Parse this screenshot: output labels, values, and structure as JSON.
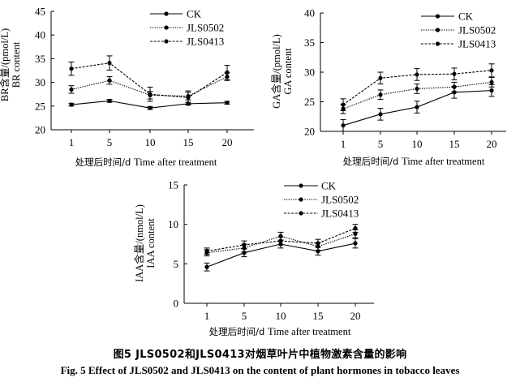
{
  "chart_data": [
    {
      "type": "line",
      "x": [
        1,
        5,
        10,
        15,
        20
      ],
      "ylim": [
        20,
        45
      ],
      "yticks": [
        20,
        25,
        30,
        35,
        40,
        45
      ],
      "ylabel": "BR含量/(pmol/L) BR content",
      "ylabel_zh": "BR含量/(pmol/L)",
      "ylabel_en": "BR content",
      "xlabel": "处理后时间/d Time after treatment",
      "legend": "top",
      "series": [
        {
          "name": "CK",
          "style": "solid",
          "values": [
            25.3,
            26.1,
            24.6,
            25.5,
            25.7
          ],
          "errors": [
            0.3,
            0.3,
            0.3,
            0.3,
            0.3
          ]
        },
        {
          "name": "JLS0502",
          "style": "dotted",
          "values": [
            28.5,
            30.4,
            27.3,
            27.1,
            31.2
          ],
          "errors": [
            0.8,
            0.8,
            0.8,
            0.8,
            0.8
          ]
        },
        {
          "name": "JLS0413",
          "style": "dashed",
          "values": [
            32.9,
            34.1,
            27.5,
            26.8,
            32.1
          ],
          "errors": [
            1.4,
            1.5,
            1.5,
            1.4,
            1.5
          ]
        }
      ]
    },
    {
      "type": "line",
      "x": [
        1,
        5,
        10,
        15,
        20
      ],
      "ylim": [
        20,
        40
      ],
      "yticks": [
        20,
        25,
        30,
        35,
        40
      ],
      "ylabel": "GA含量/(pmol/L) GA content",
      "ylabel_zh": "GA含量/(pmol/L)",
      "ylabel_en": "GA content",
      "xlabel": "处理后时间/d Time after treatment",
      "legend": "top-right",
      "series": [
        {
          "name": "CK",
          "style": "solid",
          "values": [
            21.0,
            22.9,
            24.1,
            26.6,
            26.9
          ],
          "errors": [
            1.0,
            1.0,
            1.0,
            1.0,
            1.0
          ]
        },
        {
          "name": "JLS0502",
          "style": "dotted",
          "values": [
            23.8,
            26.2,
            27.2,
            27.5,
            28.3
          ],
          "errors": [
            0.8,
            0.8,
            0.8,
            0.8,
            0.8
          ]
        },
        {
          "name": "JLS0413",
          "style": "dashed",
          "values": [
            24.5,
            29.0,
            29.6,
            29.7,
            30.3
          ],
          "errors": [
            1.0,
            1.0,
            1.0,
            1.0,
            1.1
          ]
        }
      ]
    },
    {
      "type": "line",
      "x": [
        1,
        5,
        10,
        15,
        20
      ],
      "ylim": [
        0,
        15
      ],
      "yticks": [
        0,
        5,
        10,
        15
      ],
      "ylabel": "IAA含量/(nmol/L) IAA content",
      "ylabel_zh": "IAA含量/(nmol/L)",
      "ylabel_en": "IAA content",
      "xlabel": "处理后时间/d Time after treatment",
      "legend": "top",
      "series": [
        {
          "name": "CK",
          "style": "solid",
          "values": [
            4.6,
            6.4,
            7.5,
            6.6,
            7.6
          ],
          "errors": [
            0.5,
            0.5,
            0.5,
            0.5,
            0.6
          ]
        },
        {
          "name": "JLS0502",
          "style": "dotted",
          "values": [
            6.4,
            7.0,
            8.5,
            7.2,
            8.8
          ],
          "errors": [
            0.4,
            0.5,
            0.5,
            0.5,
            0.5
          ]
        },
        {
          "name": "JLS0413",
          "style": "dashed",
          "values": [
            6.6,
            7.4,
            7.9,
            7.6,
            9.5
          ],
          "errors": [
            0.4,
            0.5,
            0.5,
            0.5,
            0.5
          ]
        }
      ]
    }
  ],
  "caption": {
    "zh": "图5   JLS0502和JLS0413对烟草叶片中植物激素含量的影响",
    "en": "Fig. 5    Effect of JLS0502 and JLS0413 on the content of plant hormones in tobacco leaves"
  }
}
